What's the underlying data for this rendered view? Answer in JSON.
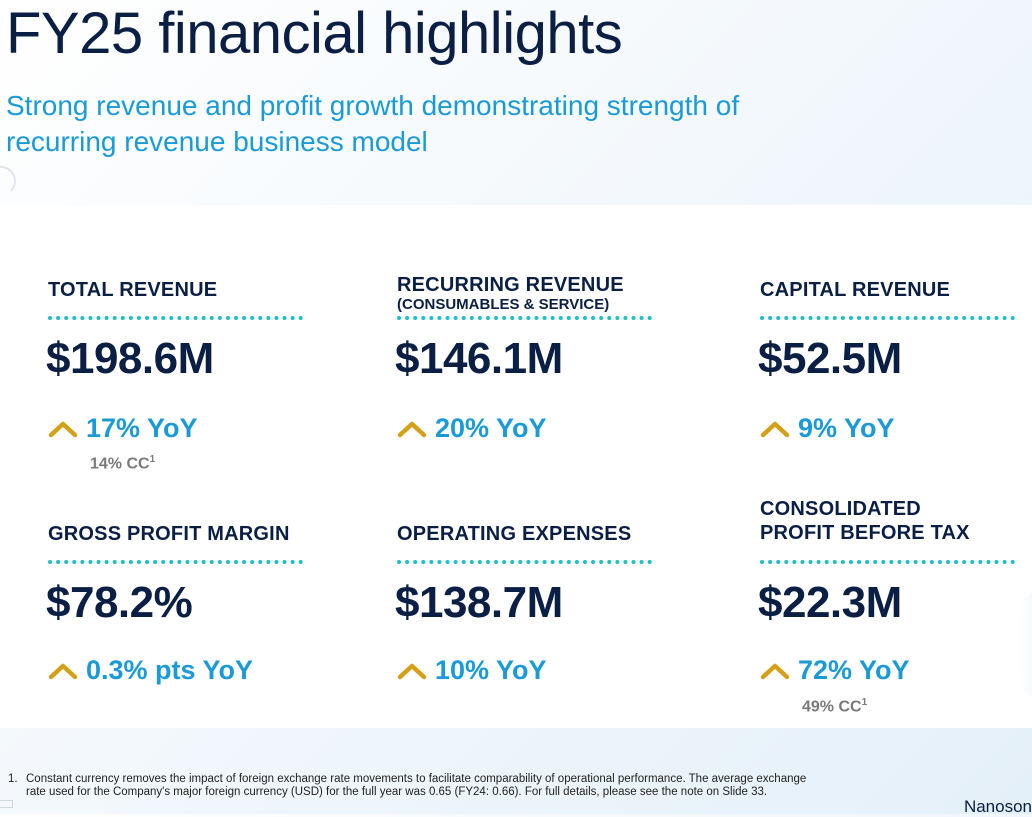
{
  "header": {
    "title": "FY25 financial highlights",
    "subtitle": "Strong revenue and profit growth demonstrating strength of recurring revenue business model"
  },
  "metrics": [
    {
      "label": "TOTAL REVENUE",
      "sublabel": "",
      "value": "$198.6M",
      "growth": "17% YoY",
      "cc": "14% CC",
      "cc_sup": "1"
    },
    {
      "label": "RECURRING REVENUE",
      "sublabel": "(CONSUMABLES & SERVICE)",
      "value": "$146.1M",
      "growth": "20% YoY",
      "cc": "",
      "cc_sup": ""
    },
    {
      "label": "CAPITAL REVENUE",
      "sublabel": "",
      "value": "$52.5M",
      "growth": "9% YoY",
      "cc": "",
      "cc_sup": ""
    },
    {
      "label": "GROSS PROFIT MARGIN",
      "sublabel": "",
      "value": "$78.2%",
      "growth": "0.3% pts YoY",
      "cc": "",
      "cc_sup": ""
    },
    {
      "label": "OPERATING EXPENSES",
      "sublabel": "",
      "value": "$138.7M",
      "growth": "10% YoY",
      "cc": "",
      "cc_sup": ""
    },
    {
      "label": "CONSOLIDATED",
      "label2": "PROFIT BEFORE TAX",
      "value": "$22.3M",
      "growth": "72% YoY",
      "cc": "49% CC",
      "cc_sup": "1"
    }
  ],
  "footnote": {
    "number": "1.",
    "text": "Constant currency removes the impact of foreign exchange rate movements to facilitate comparability of operational performance. The average exchange rate used for the Company's major foreign currency (USD) for the full year was 0.65 (FY24: 0.66). For full details, please see the note on Slide 33."
  },
  "brand": "Nanoson",
  "colors": {
    "navy": "#0b1f45",
    "accent_blue": "#1a9ad6",
    "teal_dots": "#1fbfc4",
    "chevron_gold": "#d4a017"
  },
  "icons": {
    "growth": "chevron-up-icon"
  }
}
